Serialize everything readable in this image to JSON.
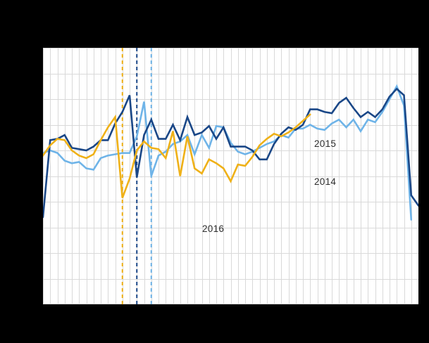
{
  "page": {
    "background_color": "#000000"
  },
  "chart": {
    "panel_background": "#ffffff",
    "grid_color": "#d9d9d9",
    "label_color": "#2e2e2e",
    "annotations": {
      "label_2015": "2015",
      "label_2014": "2014",
      "label_2016": "2016"
    }
  },
  "chart_data": {
    "type": "line",
    "title": "",
    "xlabel": "",
    "ylabel": "",
    "x_unit": "week-number",
    "x_range": [
      1,
      53
    ],
    "ylim": [
      0,
      10
    ],
    "grid": true,
    "grid_x_step": 1,
    "grid_y_step": 1,
    "legend_position": "inline-labels",
    "series": [
      {
        "name": "2014",
        "color": "#6fb4e8",
        "weeks_start": 1,
        "values": [
          5.9,
          6.0,
          5.9,
          5.6,
          5.5,
          5.55,
          5.3,
          5.25,
          5.7,
          5.8,
          5.85,
          5.9,
          5.9,
          6.55,
          7.9,
          5.0,
          5.8,
          5.95,
          6.25,
          6.35,
          6.6,
          5.85,
          6.6,
          6.1,
          6.95,
          6.9,
          6.3,
          5.95,
          5.85,
          5.95,
          6.1,
          6.25,
          6.35,
          6.6,
          6.5,
          6.85,
          6.85,
          7.0,
          6.85,
          6.8,
          7.05,
          7.2,
          6.9,
          7.2,
          6.75,
          7.2,
          7.1,
          7.5,
          8.0,
          8.5,
          7.75,
          3.3
        ]
      },
      {
        "name": "2015",
        "color": "#1a4787",
        "weeks_start": 1,
        "values": [
          3.4,
          6.4,
          6.45,
          6.6,
          6.1,
          6.05,
          6.0,
          6.15,
          6.4,
          6.4,
          7.05,
          7.5,
          8.15,
          4.95,
          6.6,
          7.2,
          6.45,
          6.45,
          7.0,
          6.4,
          7.3,
          6.6,
          6.7,
          6.95,
          6.45,
          6.9,
          6.15,
          6.15,
          6.15,
          6.0,
          5.65,
          5.65,
          6.25,
          6.65,
          6.9,
          6.8,
          7.0,
          7.6,
          7.6,
          7.5,
          7.45,
          7.85,
          8.05,
          7.65,
          7.3,
          7.5,
          7.3,
          7.6,
          8.1,
          8.4,
          8.15,
          4.25,
          3.85
        ]
      },
      {
        "name": "2016",
        "color": "#efb118",
        "weeks_start": 1,
        "values": [
          5.8,
          6.2,
          6.45,
          6.4,
          6.0,
          5.8,
          5.7,
          5.85,
          6.4,
          6.9,
          7.3,
          4.15,
          4.9,
          6.0,
          6.35,
          6.1,
          6.05,
          5.7,
          6.75,
          5.0,
          6.55,
          5.3,
          5.1,
          5.65,
          5.5,
          5.3,
          4.8,
          5.45,
          5.4,
          5.75,
          6.2,
          6.45,
          6.65,
          6.55,
          6.7,
          6.9,
          7.15,
          7.4
        ]
      }
    ],
    "event_lines": [
      {
        "series": "2016",
        "week": 12,
        "color": "#efb118",
        "style": "dashed"
      },
      {
        "series": "2015",
        "week": 14,
        "color": "#1a4787",
        "style": "dashed"
      },
      {
        "series": "2014",
        "week": 16,
        "color": "#6fb4e8",
        "style": "dashed"
      }
    ]
  }
}
